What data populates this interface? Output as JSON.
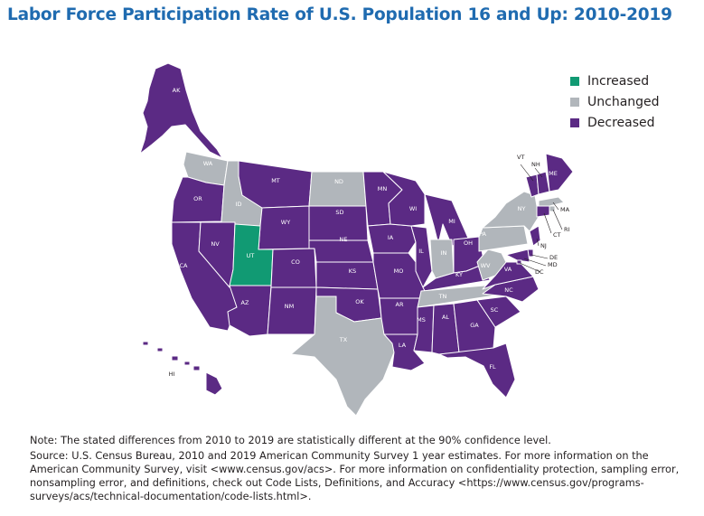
{
  "title": "Labor Force Participation Rate of U.S. Population 16 and Up: 2010-2019",
  "colors": {
    "increased": "#119a73",
    "unchanged": "#b1b6bb",
    "decreased": "#5b2a84",
    "title": "#1f6bb0"
  },
  "legend": [
    {
      "key": "increased",
      "label": "Increased"
    },
    {
      "key": "unchanged",
      "label": "Unchanged"
    },
    {
      "key": "decreased",
      "label": "Decreased"
    }
  ],
  "states": {
    "AK": "decreased",
    "HI": "decreased",
    "WA": "unchanged",
    "OR": "decreased",
    "CA": "decreased",
    "NV": "decreased",
    "ID": "unchanged",
    "MT": "decreased",
    "WY": "decreased",
    "UT": "increased",
    "AZ": "decreased",
    "CO": "decreased",
    "NM": "decreased",
    "ND": "unchanged",
    "SD": "decreased",
    "NE": "decreased",
    "KS": "decreased",
    "OK": "decreased",
    "TX": "unchanged",
    "MN": "decreased",
    "IA": "decreased",
    "MO": "decreased",
    "AR": "decreased",
    "LA": "decreased",
    "WI": "decreased",
    "IL": "decreased",
    "MI": "decreased",
    "IN": "unchanged",
    "OH": "decreased",
    "KY": "decreased",
    "TN": "unchanged",
    "MS": "decreased",
    "AL": "decreased",
    "GA": "decreased",
    "FL": "decreased",
    "SC": "decreased",
    "NC": "decreased",
    "VA": "decreased",
    "WV": "unchanged",
    "PA": "unchanged",
    "NY": "unchanged",
    "VT": "decreased",
    "NH": "decreased",
    "ME": "decreased",
    "MA": "unchanged",
    "RI": "unchanged",
    "CT": "decreased",
    "NJ": "decreased",
    "DE": "decreased",
    "MD": "decreased",
    "DC": "decreased"
  },
  "notes": {
    "note": "Note: The stated differences from 2010 to 2019 are statistically different at the 90% confidence level.",
    "source": "Source: U.S. Census Bureau, 2010 and 2019 American Community Survey 1 year estimates. For more information on the American Community Survey, visit <www.census.gov/acs>. For more information on confidentiality protection, sampling error, nonsampling error, and definitions, check out Code Lists, Definitions, and Accuracy <https://www.census.gov/programs-surveys/acs/technical-documentation/code-lists.html>."
  }
}
